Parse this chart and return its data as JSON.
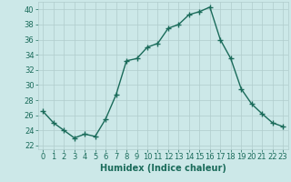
{
  "x": [
    0,
    1,
    2,
    3,
    4,
    5,
    6,
    7,
    8,
    9,
    10,
    11,
    12,
    13,
    14,
    15,
    16,
    17,
    18,
    19,
    20,
    21,
    22,
    23
  ],
  "y": [
    26.5,
    25.0,
    24.0,
    23.0,
    23.5,
    23.2,
    25.5,
    28.7,
    33.2,
    33.5,
    35.0,
    35.5,
    37.5,
    38.0,
    39.3,
    39.7,
    40.3,
    36.0,
    33.5,
    29.5,
    27.5,
    26.2,
    25.0,
    24.5
  ],
  "line_color": "#1a6b5a",
  "marker": "+",
  "marker_size": 4,
  "bg_color": "#cce8e8",
  "grid_color": "#b0cccc",
  "xlabel": "Humidex (Indice chaleur)",
  "xlim": [
    -0.5,
    23.5
  ],
  "ylim": [
    21.5,
    41.0
  ],
  "yticks": [
    22,
    24,
    26,
    28,
    30,
    32,
    34,
    36,
    38,
    40
  ],
  "xticks": [
    0,
    1,
    2,
    3,
    4,
    5,
    6,
    7,
    8,
    9,
    10,
    11,
    12,
    13,
    14,
    15,
    16,
    17,
    18,
    19,
    20,
    21,
    22,
    23
  ],
  "tick_fontsize": 6,
  "label_fontsize": 7,
  "line_width": 1.0
}
